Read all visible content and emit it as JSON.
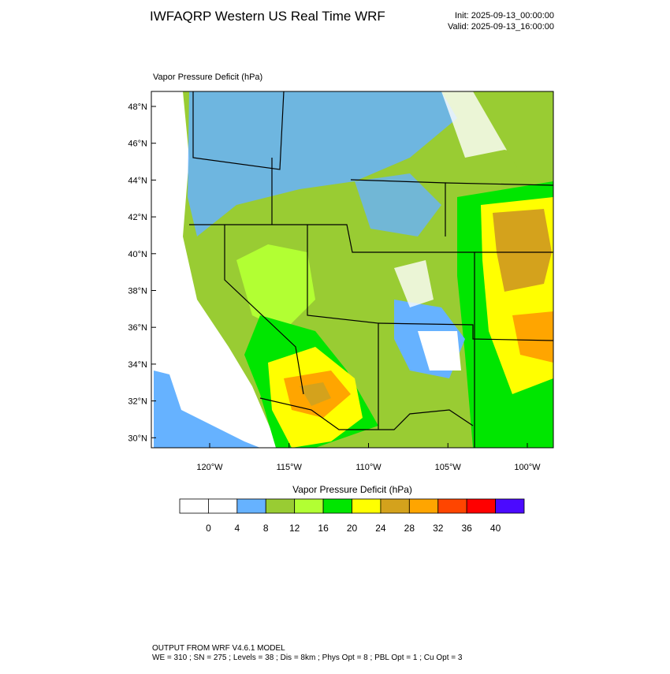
{
  "header": {
    "title": "IWFAQRP Western US Real Time WRF",
    "init": "Init: 2025-09-13_00:00:00",
    "valid": "Valid: 2025-09-13_16:00:00"
  },
  "map": {
    "label": "Vapor Pressure Deficit   (hPa)",
    "lat_labels": [
      "48°N",
      "46°N",
      "44°N",
      "42°N",
      "40°N",
      "38°N",
      "36°N",
      "34°N",
      "32°N",
      "30°N"
    ],
    "lon_labels": [
      "120°W",
      "115°W",
      "110°W",
      "105°W",
      "100°W"
    ]
  },
  "colorbar": {
    "title": "Vapor Pressure Deficit  (hPa)",
    "colors": [
      "#ffffff",
      "#ffffff",
      "#66b2ff",
      "#99cc33",
      "#b2ff33",
      "#00e600",
      "#ffff00",
      "#d4a21c",
      "#ffa500",
      "#ff4500",
      "#ff0000",
      "#4b0aff"
    ],
    "levels": [
      0,
      4,
      8,
      12,
      16,
      20,
      24,
      28,
      32,
      36,
      40
    ]
  },
  "footer": {
    "line1": "OUTPUT FROM WRF V4.6.1 MODEL",
    "line2": "WE = 310 ; SN = 275 ; Levels = 38 ; Dis = 8km ; Phys Opt = 8 ; PBL Opt = 1 ; Cu Opt = 3"
  }
}
